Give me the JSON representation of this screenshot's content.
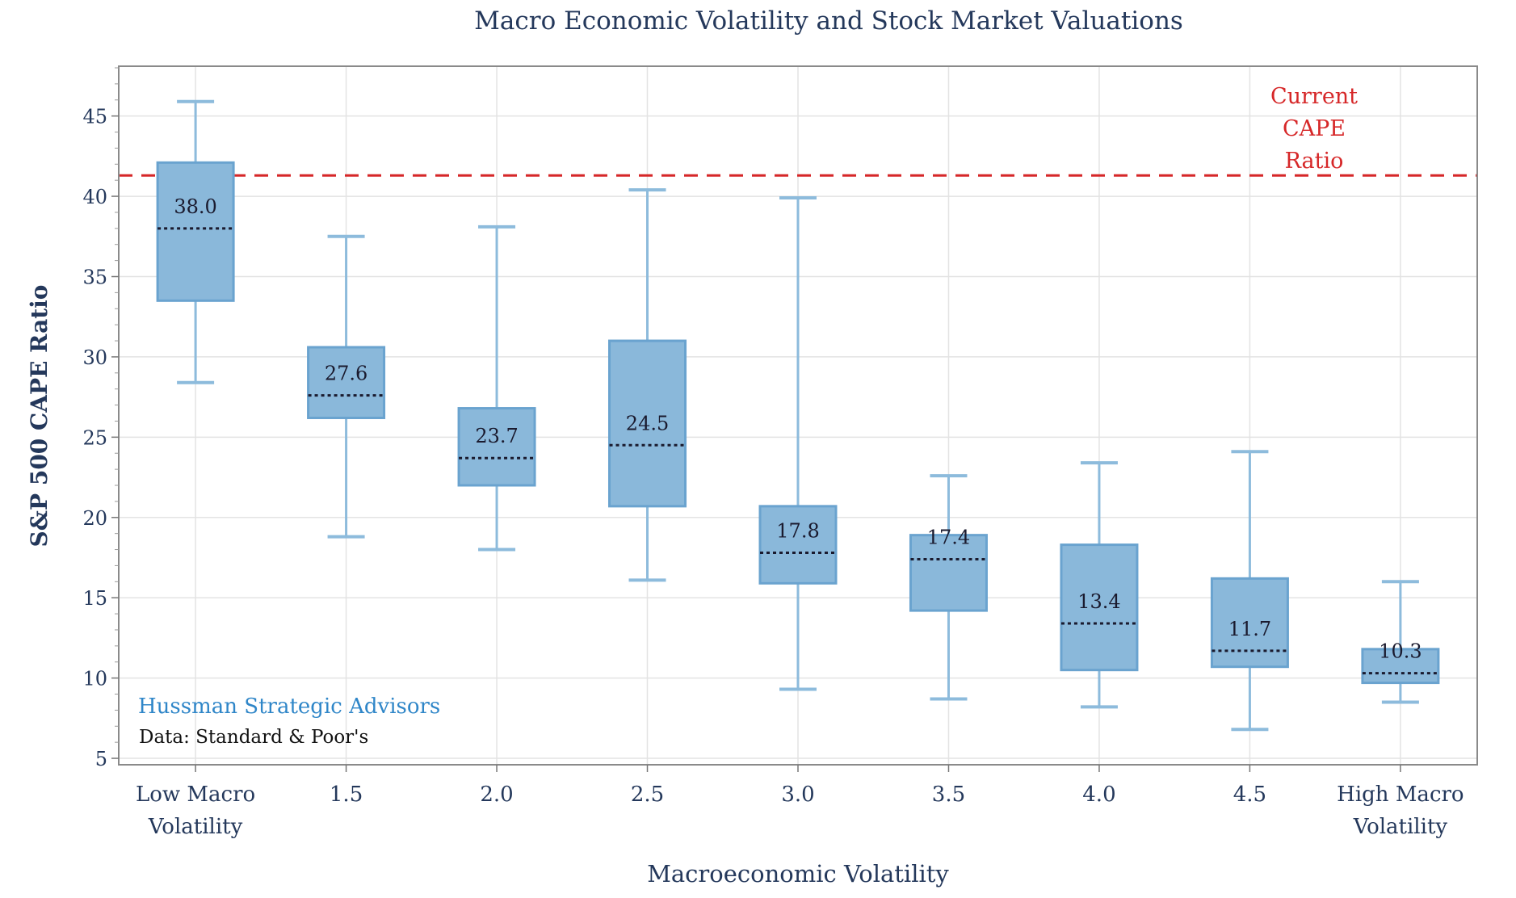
{
  "chart_data": {
    "type": "box",
    "title": "Macro Economic Volatility and Stock Market Valuations",
    "xlabel": "Macroeconomic Volatility",
    "ylabel": "S&P 500 CAPE Ratio",
    "ylim": [
      4.6,
      48.1
    ],
    "yticks": [
      "5",
      "10",
      "15",
      "20",
      "25",
      "30",
      "35",
      "40",
      "45"
    ],
    "grid": true,
    "categories": [
      [
        "Low Macro",
        "Volatility"
      ],
      [
        "1.5"
      ],
      [
        "2.0"
      ],
      [
        "2.5"
      ],
      [
        "3.0"
      ],
      [
        "3.5"
      ],
      [
        "4.0"
      ],
      [
        "4.5"
      ],
      [
        "High Macro",
        "Volatility"
      ]
    ],
    "boxes": [
      {
        "whisker_high": 45.9,
        "q3": 42.1,
        "median": 38.0,
        "q1": 33.5,
        "whisker_low": 28.4,
        "label": "38.0"
      },
      {
        "whisker_high": 37.5,
        "q3": 30.6,
        "median": 27.6,
        "q1": 26.2,
        "whisker_low": 18.8,
        "label": "27.6"
      },
      {
        "whisker_high": 38.1,
        "q3": 26.8,
        "median": 23.7,
        "q1": 22.0,
        "whisker_low": 18.0,
        "label": "23.7"
      },
      {
        "whisker_high": 40.4,
        "q3": 31.0,
        "median": 24.5,
        "q1": 20.7,
        "whisker_low": 16.1,
        "label": "24.5"
      },
      {
        "whisker_high": 39.9,
        "q3": 20.7,
        "median": 17.8,
        "q1": 15.9,
        "whisker_low": 9.3,
        "label": "17.8"
      },
      {
        "whisker_high": 22.6,
        "q3": 18.9,
        "median": 17.4,
        "q1": 14.2,
        "whisker_low": 8.7,
        "label": "17.4"
      },
      {
        "whisker_high": 23.4,
        "q3": 18.3,
        "median": 13.4,
        "q1": 10.5,
        "whisker_low": 8.2,
        "label": "13.4"
      },
      {
        "whisker_high": 24.1,
        "q3": 16.2,
        "median": 11.7,
        "q1": 10.7,
        "whisker_low": 6.8,
        "label": "11.7"
      },
      {
        "whisker_high": 16.0,
        "q3": 11.8,
        "median": 10.3,
        "q1": 9.7,
        "whisker_low": 8.5,
        "label": "10.3"
      }
    ],
    "reference_line": {
      "value": 41.3,
      "label": [
        "Current",
        "CAPE",
        "Ratio"
      ],
      "style": "dashed"
    },
    "annotations": {
      "source_brand": "Hussman Strategic Advisors",
      "source_data": "Data: Standard & Poor's"
    },
    "colors": {
      "box_fill": "#8ab8da",
      "box_stroke": "#6aa3cf",
      "whisker": "#8dbbdc",
      "median": "#1a1a2e",
      "reference": "#d62728",
      "text": "#24385b",
      "brand": "#2f86c8",
      "grid": "#e3e3e3"
    }
  }
}
